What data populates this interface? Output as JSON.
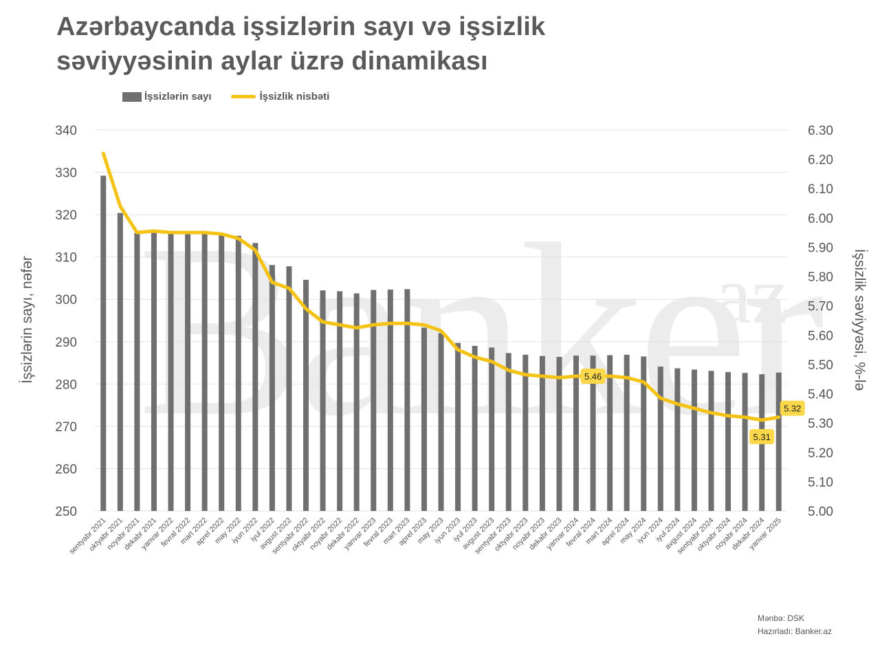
{
  "title_line1": "Azərbaycanda işsizlərin sayı və işsizlik",
  "title_line2": "səviyyəsinin aylar üzrə dinamikası",
  "legend": {
    "bars": "İşsizlərin sayı",
    "line": "İşsizlik nisbəti"
  },
  "watermark": {
    "main": "Banker",
    "sup": "az"
  },
  "footer": {
    "source": "Mənbə: DSK",
    "prepared": "Hazırladı: Banker.az"
  },
  "colors": {
    "bar": "#6f6f6f",
    "line": "#f4c315",
    "label_bg": "#fbd84a",
    "grid": "#e2e2e2"
  },
  "chart_data": {
    "type": "bar",
    "title": "Azərbaycanda işsizlərin sayı və işsizlik səviyyəsinin aylar üzrə dinamikası",
    "ylabel": "İşsizlərin sayı, nəfər",
    "y2label": "İşsizlik səviyyəsi, %-lə",
    "ylim": [
      250,
      340
    ],
    "y_ticks": [
      250,
      260,
      270,
      280,
      290,
      300,
      310,
      320,
      330,
      340
    ],
    "y2lim": [
      5.0,
      6.3
    ],
    "y2_ticks": [
      "5.00",
      "5.10",
      "5.20",
      "5.30",
      "5.40",
      "5.50",
      "5.60",
      "5.70",
      "5.80",
      "5.90",
      "6.00",
      "6.10",
      "6.20",
      "6.30"
    ],
    "grid": true,
    "legend_position": "top-left",
    "categories": [
      "sentyabr 2021",
      "oktyabr 2021",
      "noyabr 2021",
      "dekabr 2021",
      "yanvar 2022",
      "fevral 2022",
      "mart 2022",
      "aprel 2022",
      "may 2022",
      "iyun 2022",
      "iyul 2022",
      "avgust 2022",
      "sentyabr 2022",
      "oktyabr 2022",
      "noyabr 2022",
      "dekabr 2022",
      "yanvar 2023",
      "fevral 2023",
      "mart 2023",
      "aprel 2023",
      "may 2023",
      "iyun 2023",
      "iyul 2023",
      "avgust 2023",
      "sentyabr 2023",
      "oktyabr 2023",
      "noyabr 2023",
      "dekabr 2023",
      "yanvar 2024",
      "fevral 2024",
      "mart 2024",
      "aprel 2024",
      "may 2024",
      "iyun 2024",
      "iyul 2024",
      "avgust 2024",
      "sentyabr 2024",
      "oktyabr 2024",
      "noyabr 2024",
      "dekabr 2024",
      "yanvar 2025"
    ],
    "series": [
      {
        "name": "İşsizlərin sayı",
        "type": "bar",
        "axis": "left",
        "values": [
          329.2,
          320.4,
          315.7,
          315.7,
          315.6,
          315.6,
          315.6,
          315.4,
          315.0,
          313.3,
          308.1,
          307.8,
          304.6,
          302.1,
          301.9,
          301.4,
          302.2,
          302.3,
          302.4,
          293.3,
          292.0,
          289.7,
          289.0,
          288.6,
          287.3,
          286.9,
          286.6,
          286.4,
          286.7,
          286.7,
          286.8,
          286.9,
          286.5,
          284.1,
          283.7,
          283.4,
          283.1,
          282.8,
          282.6,
          282.3,
          282.7
        ]
      },
      {
        "name": "İşsizlik nisbəti",
        "type": "line",
        "axis": "right",
        "values": [
          6.22,
          6.04,
          5.95,
          5.955,
          5.95,
          5.95,
          5.95,
          5.945,
          5.93,
          5.89,
          5.78,
          5.76,
          5.69,
          5.645,
          5.635,
          5.625,
          5.635,
          5.64,
          5.64,
          5.635,
          5.615,
          5.55,
          5.525,
          5.51,
          5.48,
          5.465,
          5.46,
          5.455,
          5.46,
          5.46,
          5.46,
          5.455,
          5.44,
          5.385,
          5.365,
          5.35,
          5.335,
          5.325,
          5.32,
          5.31,
          5.32
        ]
      }
    ],
    "annotations": [
      {
        "category": "fevral 2024",
        "text": "5.46"
      },
      {
        "category": "dekabr 2024",
        "text": "5.31"
      },
      {
        "category": "yanvar 2025",
        "text": "5.32"
      }
    ]
  }
}
